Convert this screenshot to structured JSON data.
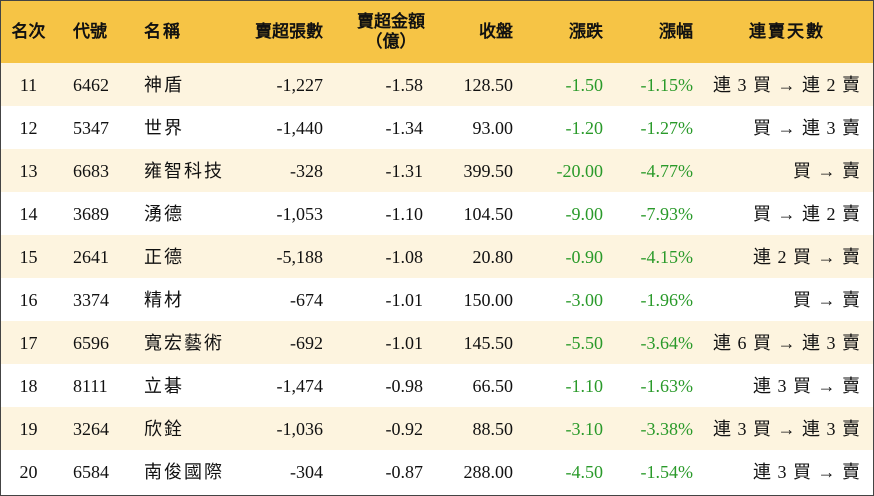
{
  "table": {
    "header": [
      "名次",
      "代號",
      "名稱",
      "賣超張數",
      "賣超金額\n（億）",
      "收盤",
      "漲跌",
      "漲幅",
      "連賣天數"
    ],
    "rows": [
      [
        "11",
        "6462",
        "神盾",
        "-1,227",
        "-1.58",
        "128.50",
        "-1.50",
        "-1.15%",
        "連 3 買 → 連 2 賣"
      ],
      [
        "12",
        "5347",
        "世界",
        "-1,440",
        "-1.34",
        "93.00",
        "-1.20",
        "-1.27%",
        "買 → 連 3 賣"
      ],
      [
        "13",
        "6683",
        "雍智科技",
        "-328",
        "-1.31",
        "399.50",
        "-20.00",
        "-4.77%",
        "買 → 賣"
      ],
      [
        "14",
        "3689",
        "湧德",
        "-1,053",
        "-1.10",
        "104.50",
        "-9.00",
        "-7.93%",
        "買 → 連 2 賣"
      ],
      [
        "15",
        "2641",
        "正德",
        "-5,188",
        "-1.08",
        "20.80",
        "-0.90",
        "-4.15%",
        "連 2 買 → 賣"
      ],
      [
        "16",
        "3374",
        "精材",
        "-674",
        "-1.01",
        "150.00",
        "-3.00",
        "-1.96%",
        "買 → 賣"
      ],
      [
        "17",
        "6596",
        "寬宏藝術",
        "-692",
        "-1.01",
        "145.50",
        "-5.50",
        "-3.64%",
        "連 6 買 → 連 3 賣"
      ],
      [
        "18",
        "8111",
        "立碁",
        "-1,474",
        "-0.98",
        "66.50",
        "-1.10",
        "-1.63%",
        "連 3 買 → 賣"
      ],
      [
        "19",
        "3264",
        "欣銓",
        "-1,036",
        "-0.92",
        "88.50",
        "-3.10",
        "-3.38%",
        "連 3 買 → 連 3 賣"
      ],
      [
        "20",
        "6584",
        "南俊國際",
        "-304",
        "-0.87",
        "288.00",
        "-4.50",
        "-1.54%",
        "連 3 買 → 賣"
      ]
    ]
  }
}
